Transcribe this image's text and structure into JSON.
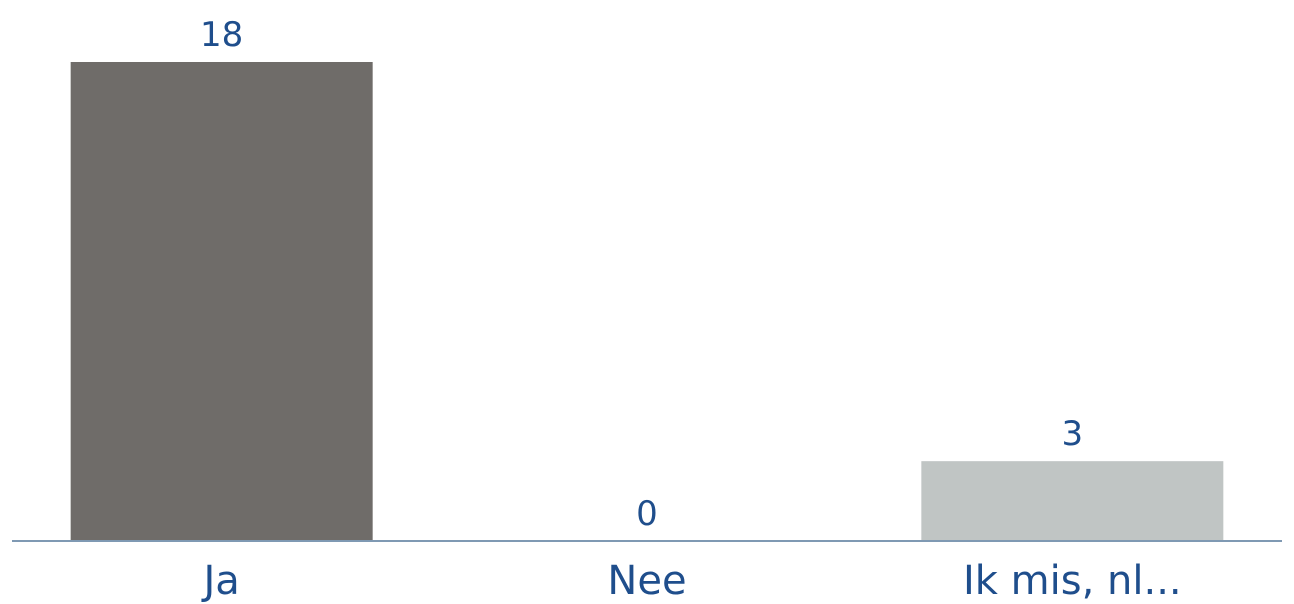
{
  "chart_data": {
    "type": "bar",
    "categories": [
      "Ja",
      "Nee",
      "Ik mis, nl..."
    ],
    "values": [
      18,
      0,
      3
    ],
    "data_labels": [
      "18",
      "0",
      "3"
    ],
    "bar_colors": [
      "#6f6c69",
      "#6f6c69",
      "#c0c5c4"
    ],
    "label_color": "#1f4e8c",
    "baseline_color": "#7f99b3",
    "ylim": [
      0,
      18
    ],
    "grid": false,
    "legend": "none",
    "title": "",
    "xlabel": "",
    "ylabel": ""
  }
}
